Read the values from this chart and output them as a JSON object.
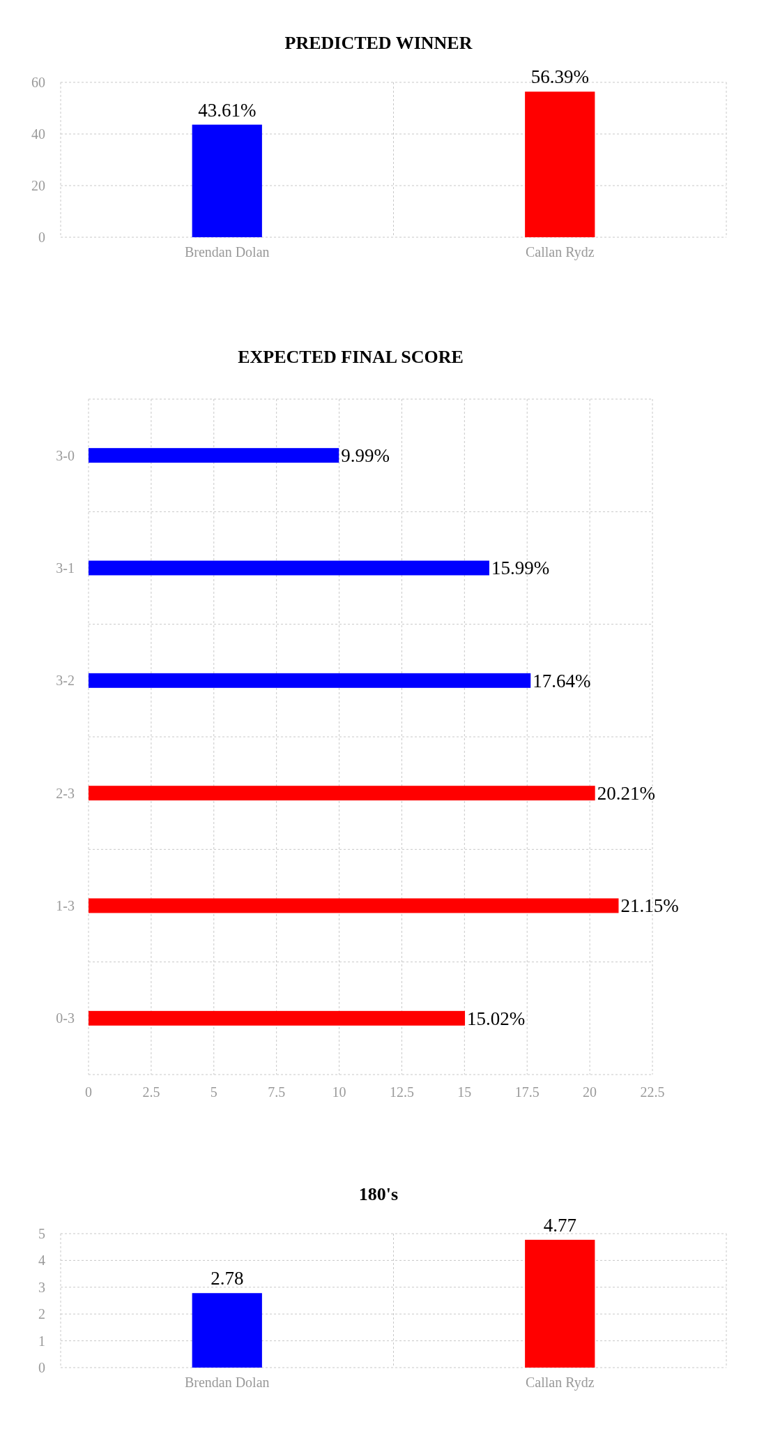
{
  "chart_data": [
    {
      "type": "bar",
      "title": "PREDICTED WINNER",
      "categories": [
        "Brendan Dolan",
        "Callan Rydz"
      ],
      "values": [
        43.61,
        56.39
      ],
      "colors": [
        "#0000ff",
        "#ff0000"
      ],
      "value_labels": [
        "43.61%",
        "56.39%"
      ],
      "ylim": [
        0,
        60
      ],
      "yticks": [
        0,
        20,
        40,
        60
      ],
      "grid": true
    },
    {
      "type": "bar",
      "title": "EXPECTED FINAL SCORE",
      "orientation": "horizontal",
      "categories": [
        "3-0",
        "3-1",
        "3-2",
        "2-3",
        "1-3",
        "0-3"
      ],
      "values": [
        9.99,
        15.99,
        17.64,
        20.21,
        21.15,
        15.02
      ],
      "colors": [
        "#0000ff",
        "#0000ff",
        "#0000ff",
        "#ff0000",
        "#ff0000",
        "#ff0000"
      ],
      "value_labels": [
        "9.99%",
        "15.99%",
        "17.64%",
        "20.21%",
        "21.15%",
        "15.02%"
      ],
      "xlim": [
        0,
        22.5
      ],
      "xticks": [
        0,
        2.5,
        5,
        7.5,
        10,
        12.5,
        15,
        17.5,
        20,
        22.5
      ],
      "grid": true
    },
    {
      "type": "bar",
      "title": "180's",
      "categories": [
        "Brendan Dolan",
        "Callan Rydz"
      ],
      "values": [
        2.78,
        4.77
      ],
      "colors": [
        "#0000ff",
        "#ff0000"
      ],
      "data_labels": true,
      "ylim": [
        0,
        5
      ],
      "yticks": [
        0,
        1,
        2,
        3,
        4,
        5
      ],
      "grid": true
    }
  ]
}
